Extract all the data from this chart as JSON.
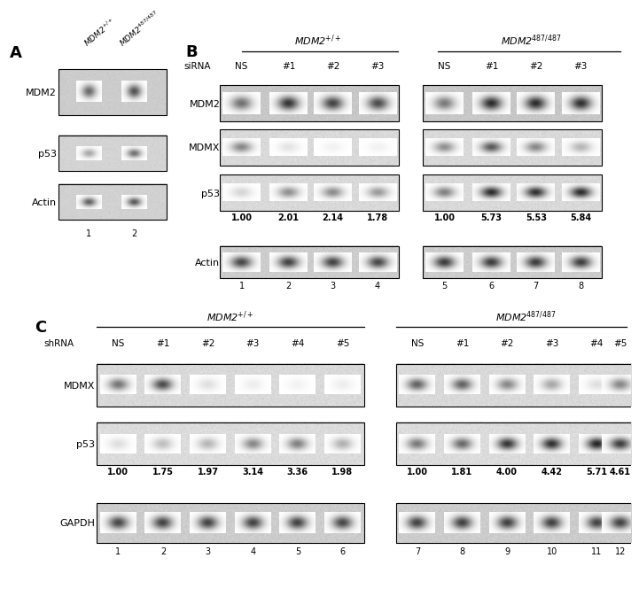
{
  "fig_width": 7.09,
  "fig_height": 6.28,
  "bg_color": "#ffffff",
  "panel_A": {
    "label": "A",
    "col_labels": [
      "MDM2$^{+/+}$",
      "MDM2$^{487/487}$"
    ],
    "row_labels": [
      "MDM2",
      "p53",
      "Actin"
    ],
    "lane_nums": [
      "1",
      "2"
    ],
    "bands_MDM2": [
      0.65,
      0.75
    ],
    "bands_p53": [
      0.38,
      0.62
    ],
    "bands_Actin": [
      0.68,
      0.72
    ]
  },
  "panel_B": {
    "label": "B",
    "group1_label": "MDM2$^{+/+}$",
    "group2_label": "MDM2$^{487/487}$",
    "rna_label": "siRNA",
    "col_labels_g1": [
      "NS",
      "#1",
      "#2",
      "#3"
    ],
    "col_labels_g2": [
      "NS",
      "#1",
      "#2",
      "#3"
    ],
    "row_labels": [
      "MDM2",
      "MDMX",
      "p53",
      "Actin"
    ],
    "lane_nums_g1": [
      "1",
      "2",
      "3",
      "4"
    ],
    "lane_nums_g2": [
      "5",
      "6",
      "7",
      "8"
    ],
    "values_g1": [
      "1.00",
      "2.01",
      "2.14",
      "1.78"
    ],
    "values_g2": [
      "1.00",
      "5.73",
      "5.53",
      "5.84"
    ],
    "bands_MDM2_g1": [
      0.62,
      0.88,
      0.82,
      0.78
    ],
    "bands_MDM2_g2": [
      0.58,
      0.92,
      0.92,
      0.9
    ],
    "bands_MDMX_g1": [
      0.52,
      0.12,
      0.06,
      0.06
    ],
    "bands_MDMX_g2": [
      0.48,
      0.72,
      0.52,
      0.32
    ],
    "bands_p53_g1": [
      0.18,
      0.48,
      0.5,
      0.44
    ],
    "bands_p53_g2": [
      0.55,
      0.92,
      0.9,
      0.92
    ],
    "bands_Actin_g1": [
      0.8,
      0.82,
      0.82,
      0.8
    ],
    "bands_Actin_g2": [
      0.85,
      0.85,
      0.85,
      0.84
    ]
  },
  "panel_C": {
    "label": "C",
    "group1_label": "MDM2$^{+/+}$",
    "group2_label": "MDM2$^{487/487}$",
    "rna_label": "shRNA",
    "col_labels_g1": [
      "NS",
      "#1",
      "#2",
      "#3",
      "#4",
      "#5"
    ],
    "col_labels_g2": [
      "NS",
      "#1",
      "#2",
      "#3",
      "#4",
      "#5"
    ],
    "row_labels": [
      "MDMX",
      "p53",
      "GAPDH"
    ],
    "lane_nums_g1": [
      "1",
      "2",
      "3",
      "4",
      "5",
      "6"
    ],
    "lane_nums_g2": [
      "7",
      "8",
      "9",
      "10",
      "11",
      "12"
    ],
    "values_g1": [
      "1.00",
      "1.75",
      "1.97",
      "3.14",
      "3.36",
      "1.98"
    ],
    "values_g2": [
      "1.00",
      "1.81",
      "4.00",
      "4.42",
      "5.71",
      "4.61"
    ],
    "bands_MDMX_g1": [
      0.6,
      0.78,
      0.14,
      0.08,
      0.06,
      0.08
    ],
    "bands_MDMX_g2": [
      0.68,
      0.68,
      0.52,
      0.38,
      0.14,
      0.52
    ],
    "bands_p53_g1": [
      0.14,
      0.28,
      0.32,
      0.52,
      0.55,
      0.34
    ],
    "bands_p53_g2": [
      0.58,
      0.65,
      0.88,
      0.9,
      0.95,
      0.84
    ],
    "bands_GAPDH_g1": [
      0.8,
      0.82,
      0.82,
      0.82,
      0.82,
      0.8
    ],
    "bands_GAPDH_g2": [
      0.82,
      0.83,
      0.83,
      0.83,
      0.82,
      0.82
    ]
  }
}
